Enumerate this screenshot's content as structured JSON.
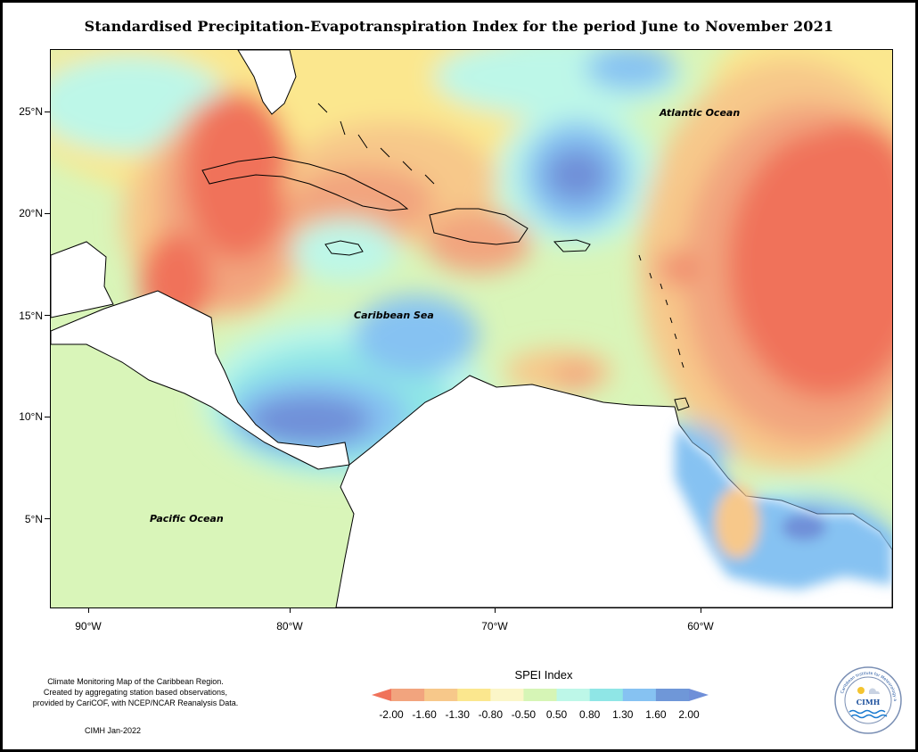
{
  "title": "Standardised Precipitation-Evapotranspiration Index for the period June to November 2021",
  "map": {
    "lat_labels": [
      "25°N",
      "20°N",
      "15°N",
      "10°N",
      "5°N"
    ],
    "lon_labels": [
      "90°W",
      "80°W",
      "70°W",
      "60°W"
    ],
    "ocean_labels": {
      "atlantic": "Atlantic Ocean",
      "caribbean": "Caribbean Sea",
      "pacific": "Pacific Ocean"
    }
  },
  "legend": {
    "title": "SPEI Index",
    "breaks": [
      "-2.00",
      "-1.60",
      "-1.30",
      "-0.80",
      "-0.50",
      "0.50",
      "0.80",
      "1.30",
      "1.60",
      "2.00"
    ],
    "colors": [
      "#f0725a",
      "#f2a47e",
      "#f7c88a",
      "#fbe78e",
      "#fbf6c8",
      "#d6f5b6",
      "#bdf7e8",
      "#8fe6e6",
      "#86c2f2",
      "#6f97d8",
      "#6f8fd8"
    ]
  },
  "credits": {
    "line1": "Climate Monitoring Map of the Caribbean Region.",
    "line2": "Created by aggregating station based observations,",
    "line3": "provided by CariCOF, with NCEP/NCAR Reanalysis Data.",
    "date": "CIMH Jan-2022"
  },
  "logo": {
    "text": "CIMH",
    "ring_text": "Caribbean Institute for Meteorology and Hydrology"
  }
}
